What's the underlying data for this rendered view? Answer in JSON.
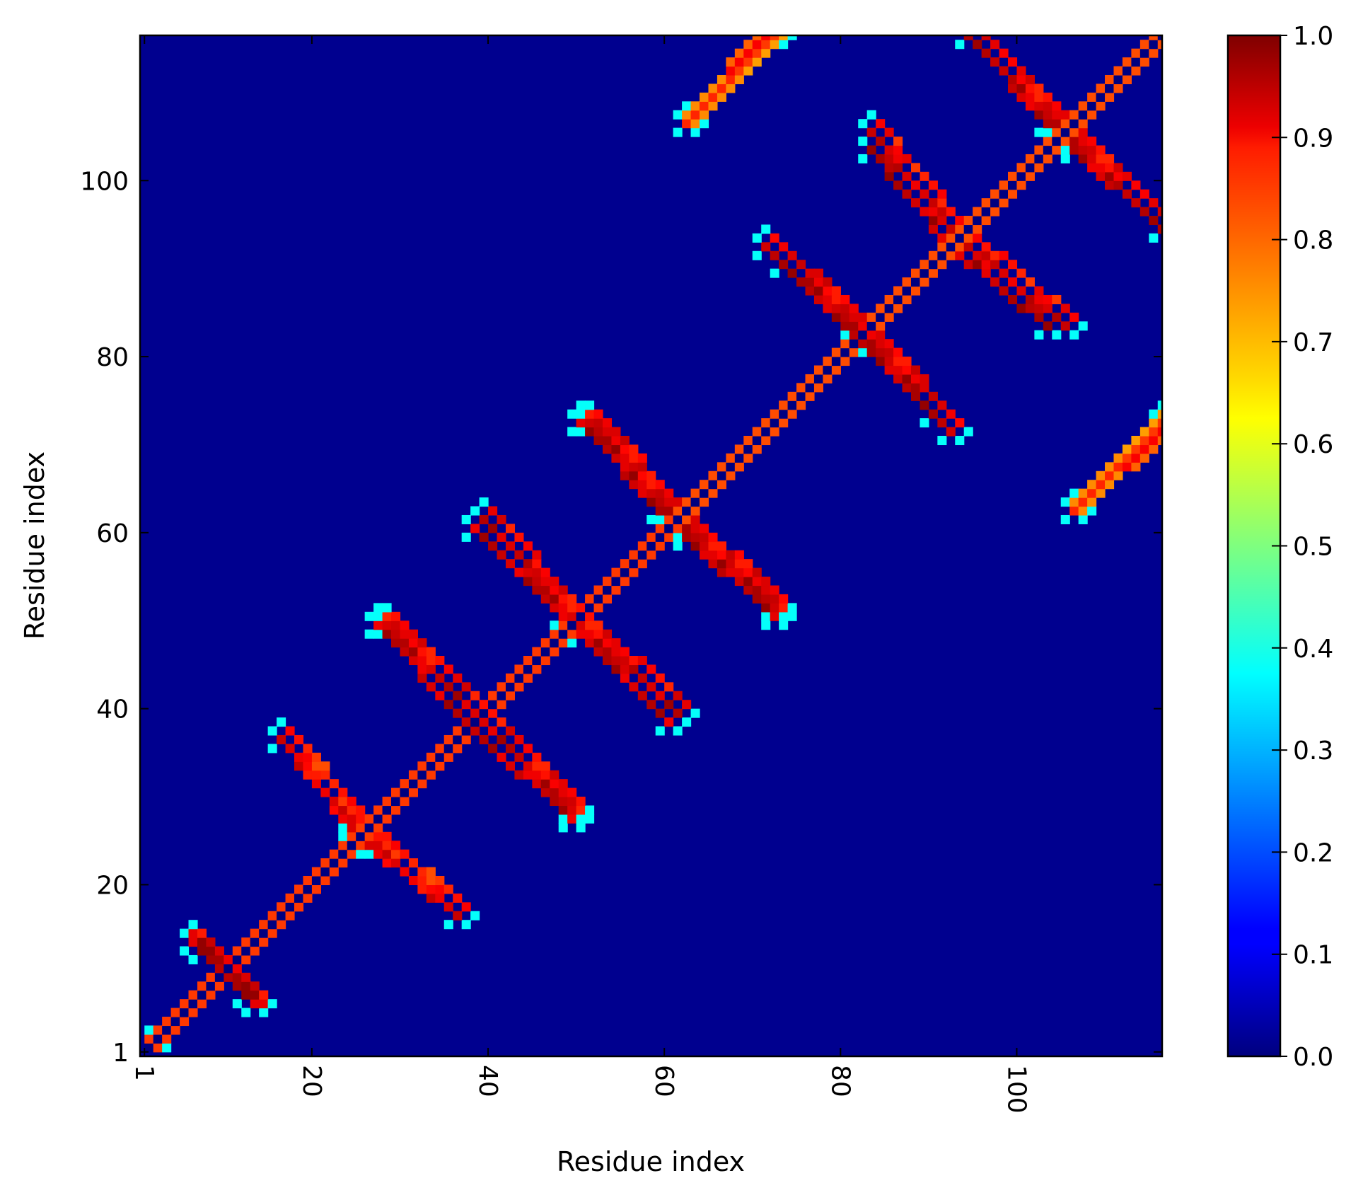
{
  "chart_data": {
    "type": "heatmap",
    "title": "",
    "xlabel": "Residue index",
    "ylabel": "Residue index",
    "n_residues": 116,
    "x_range": [
      1,
      116
    ],
    "y_range": [
      1,
      116
    ],
    "x_ticks": [
      1,
      20,
      40,
      60,
      80,
      100
    ],
    "y_ticks": [
      1,
      20,
      40,
      60,
      80,
      100
    ],
    "x_tick_labels": [
      "1",
      "20",
      "40",
      "60",
      "80",
      "100"
    ],
    "y_tick_labels": [
      "1",
      "20",
      "40",
      "60",
      "80",
      "100"
    ],
    "x_tick_rotation": "rotated 90° clockwise",
    "colormap": "jet",
    "color_range": [
      0.0,
      1.0
    ],
    "colorbar_ticks": [
      0.0,
      0.1,
      0.2,
      0.3,
      0.4,
      0.5,
      0.6,
      0.7,
      0.8,
      0.9,
      1.0
    ],
    "colorbar_tick_labels": [
      "0.0",
      "0.1",
      "0.2",
      "0.3",
      "0.4",
      "0.5",
      "0.6",
      "0.7",
      "0.8",
      "0.9",
      "1.0"
    ],
    "colorbar_position": "right",
    "grid": false,
    "diagonal_value": 0.0,
    "background_value": 0.05,
    "bands": [
      {
        "comment_free": true,
        "x_start": 1,
        "y_start": 1,
        "x_end": 60,
        "y_end": 60,
        "direction": "diagonal",
        "width": 1,
        "value": 0.92
      },
      {
        "x_start": 60,
        "y_start": 60,
        "x_end": 116,
        "y_end": 116,
        "direction": "diagonal",
        "width": 1,
        "value": 0.9
      },
      {
        "x_start": 7,
        "y_start": 12,
        "x_end": 13,
        "y_end": 6,
        "direction": "anti",
        "width": 2,
        "value": 0.98
      },
      {
        "x_start": 16,
        "y_start": 36,
        "x_end": 24,
        "y_end": 26,
        "direction": "anti",
        "width": 1,
        "value": 0.93
      },
      {
        "x_start": 27,
        "y_start": 24,
        "x_end": 36,
        "y_end": 16,
        "direction": "anti",
        "width": 1,
        "value": 0.93
      },
      {
        "x_start": 28,
        "y_start": 49,
        "x_end": 38,
        "y_end": 39,
        "direction": "anti",
        "width": 1,
        "value": 0.97
      },
      {
        "x_start": 38,
        "y_start": 37,
        "x_end": 49,
        "y_end": 27,
        "direction": "anti",
        "width": 1,
        "value": 0.97
      },
      {
        "x_start": 39,
        "y_start": 61,
        "x_end": 49,
        "y_end": 50,
        "direction": "anti",
        "width": 1,
        "value": 0.97
      },
      {
        "x_start": 50,
        "y_start": 48,
        "x_end": 60,
        "y_end": 38,
        "direction": "anti",
        "width": 1,
        "value": 0.97
      },
      {
        "x_start": 51,
        "y_start": 72,
        "x_end": 60,
        "y_end": 62,
        "direction": "anti",
        "width": 1,
        "value": 0.98
      },
      {
        "x_start": 62,
        "y_start": 59,
        "x_end": 72,
        "y_end": 50,
        "direction": "anti",
        "width": 1,
        "value": 0.98
      },
      {
        "x_start": 62,
        "y_start": 106,
        "x_end": 71,
        "y_end": 116,
        "direction": "diagonal",
        "width": 1,
        "value": 0.88
      },
      {
        "x_start": 71,
        "y_start": 92,
        "x_end": 81,
        "y_end": 83,
        "direction": "anti",
        "width": 1,
        "value": 0.98
      },
      {
        "x_start": 82,
        "y_start": 81,
        "x_end": 90,
        "y_end": 73,
        "direction": "anti",
        "width": 1,
        "value": 0.98
      },
      {
        "x_start": 83,
        "y_start": 105,
        "x_end": 92,
        "y_end": 94,
        "direction": "anti",
        "width": 1,
        "value": 0.95
      },
      {
        "x_start": 92,
        "y_start": 92,
        "x_end": 103,
        "y_end": 83,
        "direction": "anti",
        "width": 1,
        "value": 0.98
      },
      {
        "x_start": 94,
        "y_start": 116,
        "x_end": 104,
        "y_end": 106,
        "direction": "anti",
        "width": 1,
        "value": 0.97
      },
      {
        "x_start": 106,
        "y_start": 103,
        "x_end": 116,
        "y_end": 94,
        "direction": "anti",
        "width": 1,
        "value": 0.97
      },
      {
        "x_start": 106,
        "y_start": 62,
        "x_end": 116,
        "y_end": 72,
        "direction": "diagonal",
        "width": 1,
        "value": 0.88
      }
    ]
  }
}
